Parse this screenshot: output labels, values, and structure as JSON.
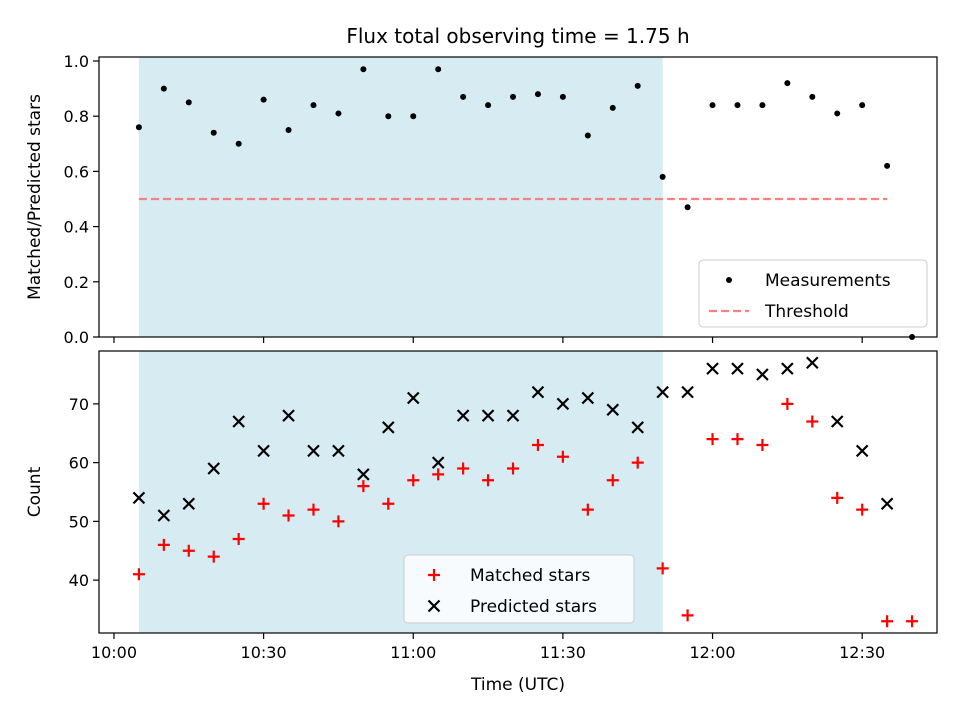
{
  "chart_data": [
    {
      "type": "scatter",
      "title": "Flux total observing time = 1.75 h",
      "xlabel": "",
      "ylabel": "Matched/Predicted stars",
      "ylim": [
        0,
        1.0
      ],
      "yticks": [
        "0.0",
        "0.2",
        "0.4",
        "0.6",
        "0.8",
        "1.0"
      ],
      "ytick_values": [
        0,
        0.2,
        0.4,
        0.6,
        0.8,
        1.0
      ],
      "shaded_region": {
        "x_start": 605,
        "x_end": 710
      },
      "series": [
        {
          "name": "Measurements",
          "marker": "dot",
          "color": "#000000",
          "x": [
            605,
            610,
            615,
            620,
            625,
            630,
            635,
            640,
            645,
            650,
            655,
            660,
            665,
            670,
            675,
            680,
            685,
            690,
            695,
            700,
            705,
            710,
            715,
            720,
            725,
            730,
            735,
            740,
            745,
            750,
            755,
            760
          ],
          "y": [
            0.76,
            0.9,
            0.85,
            0.74,
            0.7,
            0.86,
            0.75,
            0.84,
            0.81,
            0.97,
            0.8,
            0.8,
            0.97,
            0.87,
            0.84,
            0.87,
            0.88,
            0.87,
            0.73,
            0.83,
            0.91,
            0.58,
            0.47,
            0.84,
            0.84,
            0.84,
            0.92,
            0.87,
            0.81,
            0.84,
            0.62,
            0.0
          ]
        },
        {
          "name": "Threshold",
          "style": "dashed",
          "color": "#ff7f7f",
          "x": [
            605,
            755
          ],
          "y": [
            0.5,
            0.5
          ]
        }
      ],
      "legend": "lower-right"
    },
    {
      "type": "scatter",
      "title": "",
      "xlabel": "Time (UTC)",
      "ylabel": "Count",
      "ylim": [
        31,
        79
      ],
      "yticks": [
        "40",
        "50",
        "60",
        "70"
      ],
      "ytick_values": [
        40,
        50,
        60,
        70
      ],
      "xlim": [
        597,
        765
      ],
      "xticks": [
        "10:00",
        "10:30",
        "11:00",
        "11:30",
        "12:00",
        "12:30"
      ],
      "xtick_values": [
        600,
        630,
        660,
        690,
        720,
        750
      ],
      "shaded_region": {
        "x_start": 605,
        "x_end": 710
      },
      "series": [
        {
          "name": "Matched stars",
          "marker": "plus",
          "color": "#ff0000",
          "x": [
            605,
            610,
            615,
            620,
            625,
            630,
            635,
            640,
            645,
            650,
            655,
            660,
            665,
            670,
            675,
            680,
            685,
            690,
            695,
            700,
            705,
            710,
            715,
            720,
            725,
            730,
            735,
            740,
            745,
            750,
            755,
            760
          ],
          "y": [
            41,
            46,
            45,
            44,
            47,
            53,
            51,
            52,
            50,
            56,
            53,
            57,
            58,
            59,
            57,
            59,
            63,
            61,
            52,
            57,
            60,
            42,
            34,
            64,
            64,
            63,
            70,
            67,
            54,
            52,
            33,
            33
          ]
        },
        {
          "name": "Predicted stars",
          "marker": "x",
          "color": "#000000",
          "x": [
            605,
            610,
            615,
            620,
            625,
            630,
            635,
            640,
            645,
            650,
            655,
            660,
            665,
            670,
            675,
            680,
            685,
            690,
            695,
            700,
            705,
            710,
            715,
            720,
            725,
            730,
            735,
            740,
            745,
            750,
            755
          ],
          "y": [
            54,
            51,
            53,
            59,
            67,
            62,
            68,
            62,
            62,
            58,
            66,
            71,
            60,
            68,
            68,
            68,
            72,
            70,
            71,
            69,
            66,
            72,
            72,
            76,
            76,
            75,
            76,
            77,
            67,
            62,
            53
          ]
        }
      ],
      "legend": "lower-center"
    }
  ]
}
